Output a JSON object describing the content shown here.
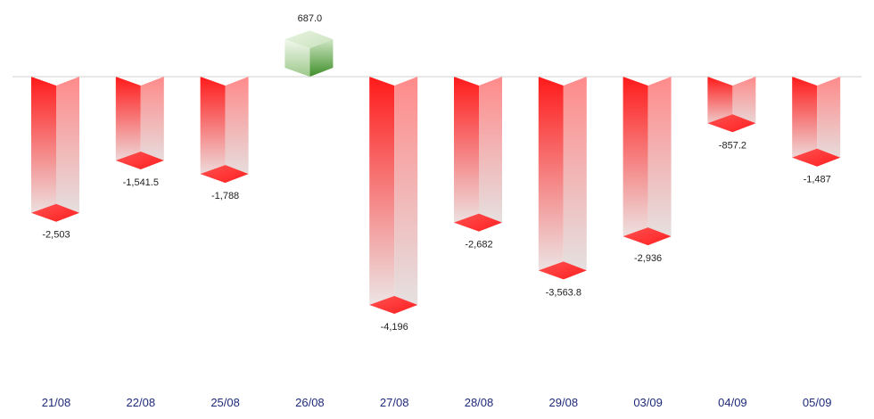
{
  "chart_data": {
    "type": "bar",
    "categories": [
      "21/08",
      "22/08",
      "25/08",
      "26/08",
      "27/08",
      "28/08",
      "29/08",
      "03/09",
      "04/09",
      "05/09"
    ],
    "values": [
      -2503,
      -1541.5,
      -1788,
      687.0,
      -4196,
      -2682,
      -3563.8,
      -2936,
      -857.2,
      -1487
    ],
    "value_labels": [
      "-2,503",
      "-1,541.5",
      "-1,788",
      "687.0",
      "-4,196",
      "-2,682",
      "-3,563.8",
      "-2,936",
      "-857.2",
      "-1,487"
    ],
    "title": "",
    "xlabel": "",
    "ylabel": "",
    "ylim": [
      -4800,
      1200
    ],
    "grid": false,
    "style": "3d-column",
    "colors": {
      "negative_top": "#ff1a1a",
      "negative_bottom": "#eeeeee",
      "positive_top": "#6ab04c",
      "positive_bottom": "#eef6e8",
      "axis_line": "#d0d0d0",
      "category_text": "#1f2a7a",
      "value_text": "#222222"
    }
  }
}
